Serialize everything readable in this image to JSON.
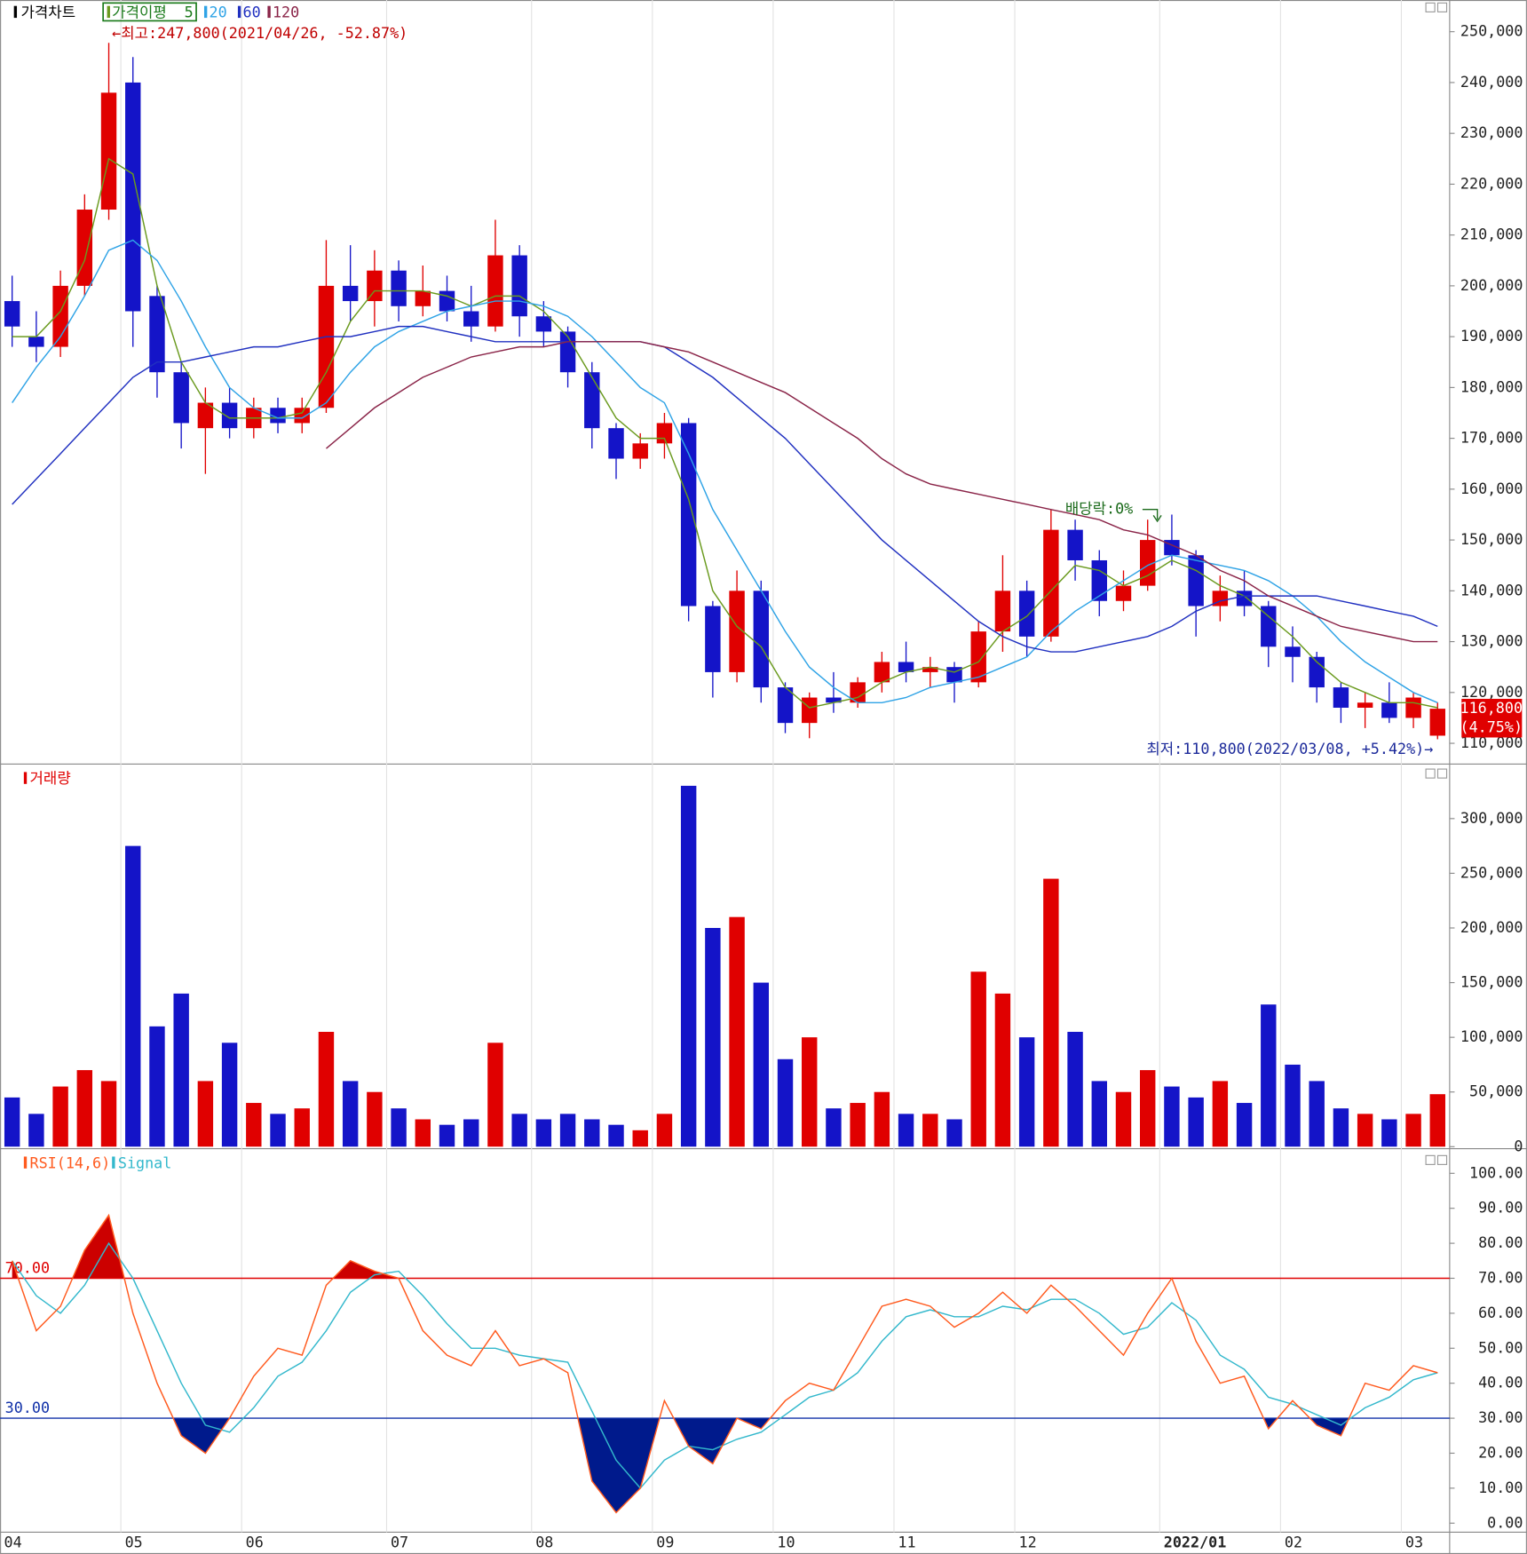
{
  "chart_data": {
    "type": "stock",
    "categories": [
      "04",
      null,
      null,
      null,
      null,
      "05",
      null,
      null,
      null,
      null,
      "06",
      null,
      null,
      null,
      null,
      null,
      "07",
      null,
      null,
      null,
      null,
      null,
      "08",
      null,
      null,
      null,
      null,
      "09",
      null,
      null,
      null,
      null,
      "10",
      null,
      null,
      null,
      null,
      "11",
      null,
      null,
      null,
      null,
      "12",
      null,
      null,
      null,
      null,
      null,
      "2022/01",
      null,
      null,
      null,
      null,
      "02",
      null,
      null,
      null,
      null,
      "03",
      null
    ],
    "price": {
      "title": "가격차트",
      "ma_title": "가격이평",
      "ylim": [
        106100,
        255650
      ],
      "yticks": [
        {
          "value": 110000,
          "label": "110,000"
        },
        {
          "value": 120000,
          "label": "120,000"
        },
        {
          "value": 130000,
          "label": "130,000"
        },
        {
          "value": 140000,
          "label": "140,000"
        },
        {
          "value": 150000,
          "label": "150,000"
        },
        {
          "value": 160000,
          "label": "160,000"
        },
        {
          "value": 170000,
          "label": "170,000"
        },
        {
          "value": 180000,
          "label": "180,000"
        },
        {
          "value": 190000,
          "label": "190,000"
        },
        {
          "value": 200000,
          "label": "200,000"
        },
        {
          "value": 210000,
          "label": "210,000"
        },
        {
          "value": 220000,
          "label": "220,000"
        },
        {
          "value": 230000,
          "label": "230,000"
        },
        {
          "value": 240000,
          "label": "240,000"
        },
        {
          "value": 250000,
          "label": "250,000"
        }
      ],
      "up_color": "#e00000",
      "down_color": "#1414c8",
      "open": [
        197000,
        190000,
        188000,
        200000,
        215000,
        240000,
        198000,
        183000,
        172000,
        177000,
        172000,
        176000,
        173000,
        176000,
        200000,
        197000,
        203000,
        196000,
        199000,
        195000,
        192000,
        206000,
        194000,
        191000,
        183000,
        172000,
        166000,
        169000,
        173000,
        137000,
        124000,
        140000,
        121000,
        114000,
        119000,
        118000,
        122000,
        126000,
        124000,
        125000,
        122000,
        132000,
        140000,
        131000,
        152000,
        146000,
        138000,
        141000,
        150000,
        147000,
        137000,
        140000,
        137000,
        129000,
        127000,
        121000,
        117000,
        118000,
        115000,
        111500
      ],
      "high": [
        202000,
        195000,
        203000,
        218000,
        247800,
        245000,
        200000,
        185000,
        180000,
        180000,
        178000,
        178000,
        178000,
        209000,
        208000,
        207000,
        205000,
        204000,
        202000,
        200000,
        213000,
        208000,
        197000,
        192000,
        185000,
        173000,
        171000,
        175000,
        174000,
        138000,
        144000,
        142000,
        122000,
        120000,
        124000,
        123000,
        128000,
        130000,
        127000,
        126000,
        134000,
        147000,
        142000,
        156000,
        154000,
        148000,
        144000,
        154000,
        155000,
        148000,
        143000,
        144000,
        138000,
        133000,
        128000,
        122000,
        120000,
        122000,
        120000,
        118000
      ],
      "low": [
        188000,
        185000,
        186000,
        198000,
        213000,
        188000,
        178000,
        168000,
        163000,
        170000,
        170000,
        171000,
        171000,
        175000,
        193000,
        192000,
        193000,
        194000,
        193000,
        189000,
        191000,
        190000,
        188000,
        180000,
        168000,
        162000,
        164000,
        166000,
        134000,
        119000,
        122000,
        118000,
        112000,
        111000,
        116000,
        117000,
        120000,
        122000,
        121000,
        118000,
        121000,
        128000,
        127000,
        130000,
        142000,
        135000,
        136000,
        140000,
        145000,
        131000,
        134000,
        135000,
        125000,
        122000,
        118000,
        114000,
        113000,
        114000,
        113000,
        110800
      ],
      "close": [
        192000,
        188000,
        200000,
        215000,
        238000,
        195000,
        183000,
        173000,
        177000,
        172000,
        176000,
        173000,
        176000,
        200000,
        197000,
        203000,
        196000,
        199000,
        195000,
        192000,
        206000,
        194000,
        191000,
        183000,
        172000,
        166000,
        169000,
        173000,
        137000,
        124000,
        140000,
        121000,
        114000,
        119000,
        118000,
        122000,
        126000,
        124000,
        125000,
        122000,
        132000,
        140000,
        131000,
        152000,
        146000,
        138000,
        141000,
        150000,
        147000,
        137000,
        140000,
        137000,
        129000,
        127000,
        121000,
        117000,
        118000,
        115000,
        119000,
        116800
      ],
      "series": [
        {
          "name": "5",
          "color": "#6a9a1e",
          "values": [
            190000,
            190000,
            195000,
            205000,
            225000,
            222000,
            200000,
            185000,
            177000,
            174000,
            174000,
            174000,
            175000,
            183000,
            193000,
            199000,
            199000,
            199000,
            198000,
            196000,
            198000,
            198000,
            195000,
            190000,
            182000,
            174000,
            170000,
            170000,
            158000,
            140000,
            133000,
            129000,
            121000,
            117000,
            118000,
            119000,
            122000,
            124000,
            125000,
            124000,
            126000,
            132000,
            135000,
            140000,
            145000,
            144000,
            141000,
            143000,
            146000,
            144000,
            141000,
            139000,
            135000,
            131000,
            126000,
            122000,
            120000,
            118000,
            118000,
            117000
          ]
        },
        {
          "name": "20",
          "color": "#2fa3e6",
          "values": [
            177000,
            184000,
            190000,
            198000,
            207000,
            209000,
            205000,
            197000,
            188000,
            180000,
            176000,
            174000,
            174000,
            177000,
            183000,
            188000,
            191000,
            193000,
            195000,
            196000,
            197000,
            197000,
            196000,
            194000,
            190000,
            185000,
            180000,
            177000,
            167000,
            156000,
            148000,
            140000,
            132000,
            125000,
            121000,
            118000,
            118000,
            119000,
            121000,
            122000,
            123000,
            125000,
            127000,
            132000,
            136000,
            139000,
            142000,
            145000,
            147000,
            146000,
            145000,
            144000,
            142000,
            139000,
            135000,
            130000,
            126000,
            123000,
            120000,
            118000
          ]
        },
        {
          "name": "60",
          "color": "#2030c0",
          "values": [
            157000,
            162000,
            167000,
            172000,
            177000,
            182000,
            185000,
            185000,
            186000,
            187000,
            188000,
            188000,
            189000,
            190000,
            190000,
            191000,
            192000,
            192000,
            191000,
            190000,
            189000,
            189000,
            189000,
            189000,
            189000,
            189000,
            189000,
            188000,
            185000,
            182000,
            178000,
            174000,
            170000,
            165000,
            160000,
            155000,
            150000,
            146000,
            142000,
            138000,
            134000,
            131000,
            129000,
            128000,
            128000,
            129000,
            130000,
            131000,
            133000,
            136000,
            138000,
            139000,
            139000,
            139000,
            139000,
            138000,
            137000,
            136000,
            135000,
            133000
          ]
        },
        {
          "name": "120",
          "color": "#8a2448",
          "values": [
            null,
            null,
            null,
            null,
            null,
            null,
            null,
            null,
            null,
            null,
            null,
            null,
            null,
            168000,
            172000,
            176000,
            179000,
            182000,
            184000,
            186000,
            187000,
            188000,
            188000,
            189000,
            189000,
            189000,
            189000,
            188000,
            187000,
            185000,
            183000,
            181000,
            179000,
            176000,
            173000,
            170000,
            166000,
            163000,
            161000,
            160000,
            159000,
            158000,
            157000,
            156000,
            155000,
            154000,
            152000,
            151000,
            149000,
            147000,
            144000,
            142000,
            139000,
            137000,
            135000,
            133000,
            132000,
            131000,
            130000,
            130000
          ]
        }
      ],
      "annotations": [
        "←최고:247,800(2021/04/26, -52.87%)",
        "배당락:0%",
        "최저:110,800(2022/03/08, +5.42%)→"
      ],
      "last_price": {
        "value": 116800,
        "label": "116,800"
      },
      "last_change": "(4.75%)"
    },
    "volume": {
      "title": "거래량",
      "ylim": [
        0,
        346200
      ],
      "yticks": [
        0,
        {
          "value": 50000,
          "label": "50,000"
        },
        {
          "value": 100000,
          "label": "100,000"
        },
        {
          "value": 150000,
          "label": "150,000"
        },
        {
          "value": 200000,
          "label": "200,000"
        },
        {
          "value": 250000,
          "label": "250,000"
        },
        {
          "value": 300000,
          "label": "300,000"
        }
      ],
      "values": [
        45000,
        30000,
        55000,
        70000,
        60000,
        275000,
        110000,
        140000,
        60000,
        95000,
        40000,
        30000,
        35000,
        105000,
        60000,
        50000,
        35000,
        25000,
        20000,
        25000,
        95000,
        30000,
        25000,
        30000,
        25000,
        20000,
        15000,
        30000,
        330000,
        200000,
        210000,
        150000,
        80000,
        100000,
        35000,
        40000,
        50000,
        30000,
        30000,
        25000,
        160000,
        140000,
        100000,
        245000,
        105000,
        60000,
        50000,
        70000,
        55000,
        45000,
        60000,
        40000,
        130000,
        75000,
        60000,
        35000,
        30000,
        25000,
        30000,
        48000
      ]
    },
    "rsi": {
      "ylim": [
        -2.3,
        106.2
      ],
      "yticks": [
        {
          "value": 0,
          "label": "0.00"
        },
        {
          "value": 10,
          "label": "10.00"
        },
        {
          "value": 20,
          "label": "20.00"
        },
        {
          "value": 30,
          "label": "30.00"
        },
        {
          "value": 40,
          "label": "40.00"
        },
        {
          "value": 50,
          "label": "50.00"
        },
        {
          "value": 60,
          "label": "60.00"
        },
        {
          "value": 70,
          "label": "70.00"
        },
        {
          "value": 80,
          "label": "80.00"
        },
        {
          "value": 90,
          "label": "90.00"
        },
        {
          "value": 100,
          "label": "100.00"
        }
      ],
      "thresholds": [
        {
          "value": 70,
          "label": "70.00",
          "color": "#e00000",
          "fill": "#cc0000"
        },
        {
          "value": 30,
          "label": "30.00",
          "color": "#1030a8",
          "fill": "#001a8c"
        }
      ],
      "series": [
        {
          "name": "RSI(14,6)",
          "color": "#ff5a1e",
          "values": [
            75,
            55,
            62,
            78,
            88,
            60,
            40,
            25,
            20,
            30,
            42,
            50,
            48,
            68,
            75,
            72,
            70,
            55,
            48,
            45,
            55,
            45,
            47,
            43,
            12,
            3,
            10,
            35,
            22,
            17,
            30,
            27,
            35,
            40,
            38,
            50,
            62,
            64,
            62,
            56,
            60,
            66,
            60,
            68,
            62,
            55,
            48,
            60,
            70,
            52,
            40,
            42,
            27,
            35,
            28,
            25,
            40,
            38,
            45,
            43
          ]
        },
        {
          "name": "Signal",
          "color": "#33b8cc",
          "values": [
            75,
            65,
            60,
            68,
            80,
            70,
            55,
            40,
            28,
            26,
            33,
            42,
            46,
            55,
            66,
            71,
            72,
            65,
            57,
            50,
            50,
            48,
            47,
            46,
            32,
            18,
            10,
            18,
            22,
            21,
            24,
            26,
            31,
            36,
            38,
            43,
            52,
            59,
            61,
            59,
            59,
            62,
            61,
            64,
            64,
            60,
            54,
            56,
            63,
            58,
            48,
            44,
            36,
            34,
            31,
            28,
            33,
            36,
            41,
            43
          ]
        }
      ]
    }
  }
}
